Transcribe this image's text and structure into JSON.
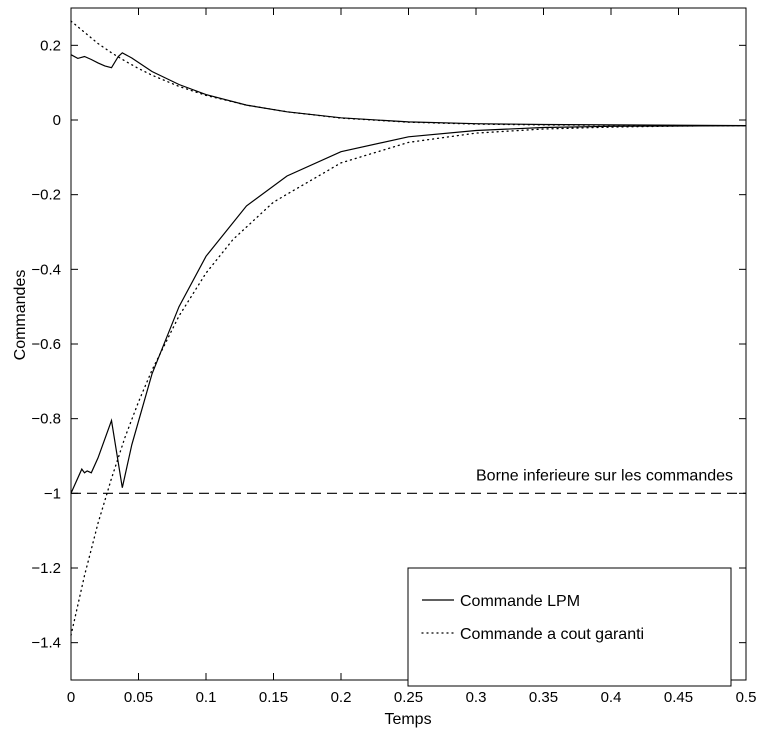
{
  "chart_data": {
    "type": "line",
    "title": "",
    "xlabel": "Temps",
    "ylabel": "Commandes",
    "xlim": [
      0,
      0.5
    ],
    "ylim": [
      -1.5,
      0.3
    ],
    "xticks": [
      0,
      0.05,
      0.1,
      0.15,
      0.2,
      0.25,
      0.3,
      0.35,
      0.4,
      0.45,
      0.5
    ],
    "xtick_labels": [
      "0",
      "0.05",
      "0.1",
      "0.15",
      "0.2",
      "0.25",
      "0.3",
      "0.35",
      "0.4",
      "0.45",
      "0.5"
    ],
    "yticks": [
      0.2,
      0,
      -0.2,
      -0.4,
      -0.6,
      -0.8,
      -1,
      -1.2,
      -1.4
    ],
    "ytick_labels": [
      "0.2",
      "0",
      "−0.2",
      "−0.4",
      "−0.6",
      "−0.8",
      "−1",
      "−1.2",
      "−1.4"
    ],
    "grid": false,
    "legend_position": "bottom-right",
    "series": [
      {
        "name": "Commande LPM",
        "style": "solid",
        "group": "upper",
        "x": [
          0,
          0.005,
          0.01,
          0.015,
          0.02,
          0.025,
          0.03,
          0.035,
          0.038,
          0.045,
          0.06,
          0.08,
          0.1,
          0.13,
          0.16,
          0.2,
          0.25,
          0.3,
          0.35,
          0.4,
          0.45,
          0.5
        ],
        "y": [
          0.175,
          0.165,
          0.17,
          0.162,
          0.153,
          0.145,
          0.14,
          0.17,
          0.18,
          0.166,
          0.13,
          0.095,
          0.068,
          0.04,
          0.022,
          0.006,
          -0.005,
          -0.01,
          -0.012,
          -0.013,
          -0.014,
          -0.015
        ]
      },
      {
        "name": "Commande LPM",
        "style": "solid",
        "group": "lower",
        "x": [
          0,
          0.008,
          0.01,
          0.012,
          0.015,
          0.02,
          0.03,
          0.038,
          0.045,
          0.06,
          0.08,
          0.1,
          0.13,
          0.16,
          0.2,
          0.25,
          0.3,
          0.35,
          0.4,
          0.45,
          0.5
        ],
        "y": [
          -1.0,
          -0.935,
          -0.945,
          -0.94,
          -0.945,
          -0.905,
          -0.805,
          -0.985,
          -0.87,
          -0.68,
          -0.5,
          -0.365,
          -0.23,
          -0.15,
          -0.085,
          -0.045,
          -0.028,
          -0.02,
          -0.017,
          -0.016,
          -0.015
        ]
      },
      {
        "name": "Commande a cout garanti",
        "style": "dotted",
        "group": "upper",
        "x": [
          0,
          0.01,
          0.02,
          0.03,
          0.04,
          0.05,
          0.06,
          0.08,
          0.1,
          0.13,
          0.16,
          0.2,
          0.25,
          0.3,
          0.35,
          0.4,
          0.45,
          0.5
        ],
        "y": [
          0.265,
          0.235,
          0.205,
          0.18,
          0.158,
          0.138,
          0.12,
          0.09,
          0.066,
          0.04,
          0.022,
          0.005,
          -0.006,
          -0.011,
          -0.013,
          -0.014,
          -0.015,
          -0.015
        ]
      },
      {
        "name": "Commande a cout garanti",
        "style": "dotted",
        "group": "lower",
        "x": [
          0,
          0.005,
          0.01,
          0.015,
          0.02,
          0.025,
          0.03,
          0.04,
          0.05,
          0.06,
          0.08,
          0.1,
          0.12,
          0.15,
          0.2,
          0.25,
          0.3,
          0.35,
          0.4,
          0.45,
          0.5
        ],
        "y": [
          -1.38,
          -1.3,
          -1.22,
          -1.15,
          -1.08,
          -1.02,
          -0.96,
          -0.85,
          -0.755,
          -0.67,
          -0.525,
          -0.41,
          -0.32,
          -0.22,
          -0.115,
          -0.06,
          -0.035,
          -0.024,
          -0.019,
          -0.016,
          -0.015
        ]
      }
    ],
    "annotations": [
      {
        "text": "Borne inferieure sur les commandes",
        "x": 0.3,
        "y": -0.965
      }
    ],
    "reference_lines": [
      {
        "orientation": "horizontal",
        "y": -1,
        "style": "dashed"
      }
    ],
    "legend": {
      "entries": [
        {
          "label": "Commande LPM",
          "style": "solid"
        },
        {
          "label": "Commande a cout garanti",
          "style": "dotted"
        }
      ]
    }
  }
}
